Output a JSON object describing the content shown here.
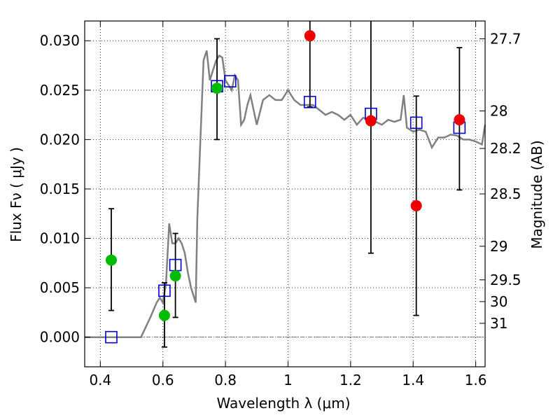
{
  "chart_data": {
    "type": "scatter",
    "title": "",
    "xlabel": "Wavelength  λ (μm)",
    "ylabel": "Flux  Fν  ( μJy )",
    "ylabel_right": "Magnitude (AB)",
    "xlim": [
      0.35,
      1.63
    ],
    "ylim": [
      -0.003,
      0.032
    ],
    "grid": true,
    "x_ticks": [
      0.4,
      0.6,
      0.8,
      1.0,
      1.2,
      1.4,
      1.6
    ],
    "x_tick_labels": [
      "0.4",
      "0.6",
      "0.8",
      "1",
      "1.2",
      "1.4",
      "1.6"
    ],
    "y_ticks": [
      0.0,
      0.005,
      0.01,
      0.015,
      0.02,
      0.025,
      0.03
    ],
    "y_tick_labels": [
      "0.000",
      "0.005",
      "0.010",
      "0.015",
      "0.020",
      "0.025",
      "0.030"
    ],
    "right_ticks": [
      {
        "label": "27.7",
        "flux": 0.0302
      },
      {
        "label": "28",
        "flux": 0.0229
      },
      {
        "label": "28.2",
        "flux": 0.0191
      },
      {
        "label": "28.5",
        "flux": 0.0145
      },
      {
        "label": "29",
        "flux": 0.0092
      },
      {
        "label": "29.5",
        "flux": 0.0058
      },
      {
        "label": "30",
        "flux": 0.0036
      },
      {
        "label": "31",
        "flux": 0.0014
      }
    ],
    "colors": {
      "model": "#808080",
      "model_points": "#0000cc",
      "green_points": "#00bb00",
      "red_points": "#ee0000",
      "errorbar": "#000000",
      "grid": "#000000",
      "zero_line": "#555555"
    },
    "model_sed": {
      "x": [
        0.35,
        0.53,
        0.56,
        0.58,
        0.59,
        0.6,
        0.61,
        0.62,
        0.63,
        0.64,
        0.65,
        0.66,
        0.67,
        0.68,
        0.69,
        0.7,
        0.705,
        0.71,
        0.72,
        0.73,
        0.74,
        0.75,
        0.76,
        0.77,
        0.78,
        0.79,
        0.8,
        0.81,
        0.82,
        0.83,
        0.84,
        0.85,
        0.86,
        0.87,
        0.88,
        0.9,
        0.92,
        0.94,
        0.96,
        0.98,
        1.0,
        1.02,
        1.04,
        1.06,
        1.08,
        1.1,
        1.12,
        1.14,
        1.16,
        1.18,
        1.2,
        1.22,
        1.24,
        1.26,
        1.28,
        1.3,
        1.32,
        1.34,
        1.36,
        1.37,
        1.38,
        1.4,
        1.42,
        1.44,
        1.46,
        1.48,
        1.5,
        1.52,
        1.54,
        1.56,
        1.58,
        1.6,
        1.62,
        1.63
      ],
      "y": [
        0.0,
        0.0,
        0.002,
        0.0035,
        0.004,
        0.0035,
        0.0055,
        0.0115,
        0.0095,
        0.0095,
        0.01,
        0.0095,
        0.0085,
        0.0065,
        0.005,
        0.004,
        0.0035,
        0.012,
        0.02,
        0.028,
        0.029,
        0.026,
        0.027,
        0.028,
        0.0285,
        0.0283,
        0.026,
        0.0255,
        0.025,
        0.0265,
        0.026,
        0.0215,
        0.022,
        0.0235,
        0.0245,
        0.0215,
        0.024,
        0.0245,
        0.024,
        0.024,
        0.025,
        0.024,
        0.0235,
        0.0235,
        0.0235,
        0.023,
        0.0225,
        0.0228,
        0.0225,
        0.022,
        0.0225,
        0.0215,
        0.0222,
        0.022,
        0.0218,
        0.0215,
        0.022,
        0.0218,
        0.022,
        0.0245,
        0.0212,
        0.0208,
        0.021,
        0.0208,
        0.0192,
        0.0202,
        0.0202,
        0.0205,
        0.0204,
        0.02,
        0.02,
        0.0198,
        0.0195,
        0.0215
      ]
    },
    "series": [
      {
        "marker": "square",
        "x": [
          0.435,
          0.605,
          0.64,
          0.773,
          0.815,
          1.07,
          1.265,
          1.41,
          1.548
        ],
        "y": [
          0.0,
          0.0047,
          0.0073,
          0.0254,
          0.0259,
          0.0238,
          0.0226,
          0.0217,
          0.0212
        ]
      },
      {
        "marker": "circle",
        "x": [
          0.435,
          0.605,
          0.64,
          0.773
        ],
        "y": [
          0.0078,
          0.0022,
          0.0062,
          0.0252
        ],
        "err_low": [
          0.0027,
          -0.001,
          0.002,
          0.02
        ],
        "err_high": [
          0.013,
          0.0055,
          0.0105,
          0.0302
        ]
      },
      {
        "marker": "circle",
        "x": [
          1.07,
          1.265,
          1.41,
          1.548
        ],
        "y": [
          0.0305,
          0.0219,
          0.0133,
          0.022
        ],
        "err_low": [
          0.0233,
          0.0085,
          0.0022,
          0.0149
        ],
        "err_high": [
          0.0325,
          0.0325,
          0.0244,
          0.0293
        ]
      }
    ]
  }
}
